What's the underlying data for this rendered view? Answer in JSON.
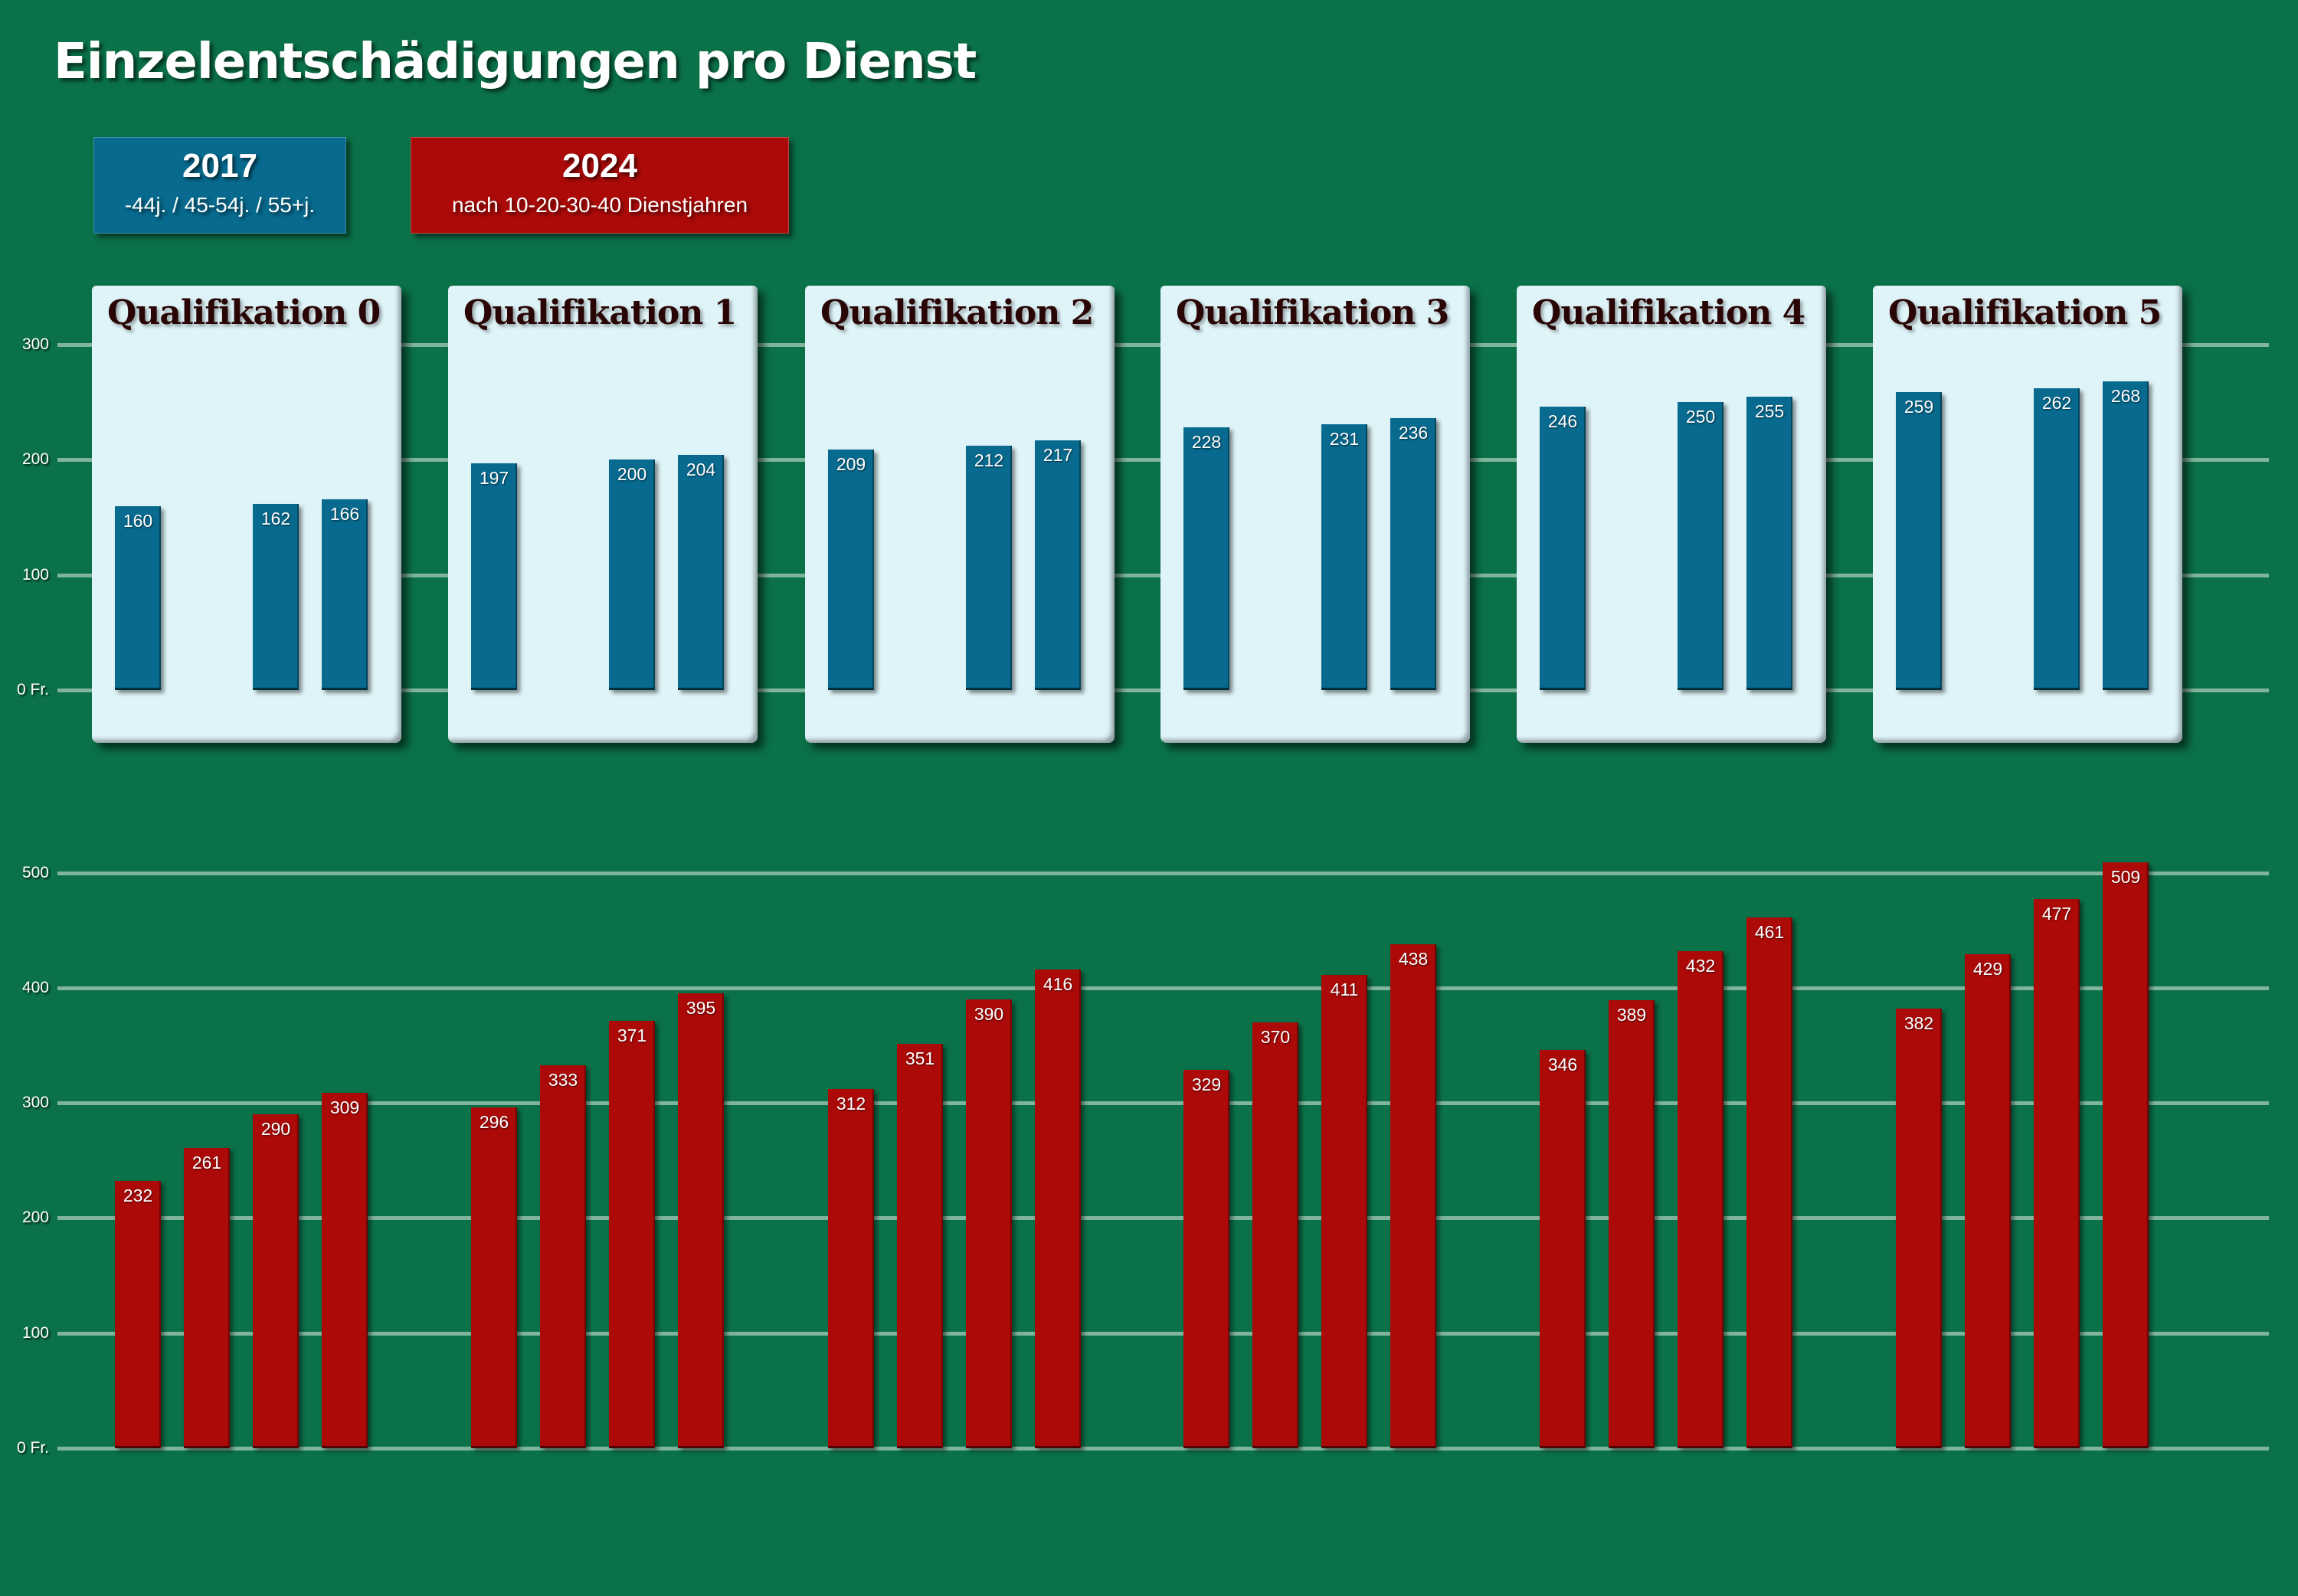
{
  "title": "Einzelentschädigungen pro Dienst",
  "legend": [
    {
      "year": "2017",
      "subtitle": "-44j. / 45-54j. / 55+j.",
      "color": "#076a8e"
    },
    {
      "year": "2024",
      "subtitle": "nach 10-20-30-40 Dienstjahren",
      "color": "#ab0a08"
    }
  ],
  "colors": {
    "background": "#0a7148",
    "panel": "#dff4f8",
    "bar_2017": "#076a8e",
    "bar_2024": "#ab0a08",
    "grid": "#7fb59c"
  },
  "chart_data": [
    {
      "type": "bar",
      "title": "2017",
      "ylabel": "Fr.",
      "ylim": [
        0,
        300
      ],
      "yticks": [
        "0 Fr.",
        "100",
        "200",
        "300"
      ],
      "categories": [
        "Qualifikation 0",
        "Qualifikation 1",
        "Qualifikation 2",
        "Qualifikation 3",
        "Qualifikation 4",
        "Qualifikation 5"
      ],
      "slots": [
        "-44j.",
        "",
        "45-54j.",
        "55+j."
      ],
      "series": [
        {
          "name": "-44j.",
          "values": [
            160,
            197,
            209,
            228,
            246,
            259
          ]
        },
        {
          "name": "45-54j.",
          "values": [
            162,
            200,
            212,
            231,
            250,
            262
          ]
        },
        {
          "name": "55+j.",
          "values": [
            166,
            204,
            217,
            236,
            255,
            268
          ]
        }
      ],
      "grid": true
    },
    {
      "type": "bar",
      "title": "2024",
      "ylabel": "Fr.",
      "ylim": [
        0,
        500
      ],
      "yticks": [
        "0 Fr.",
        "100",
        "200",
        "300",
        "400",
        "500"
      ],
      "categories": [
        "Qualifikation 0",
        "Qualifikation 1",
        "Qualifikation 2",
        "Qualifikation 3",
        "Qualifikation 4",
        "Qualifikation 5"
      ],
      "series": [
        {
          "name": "10 Dienstjahre",
          "values": [
            232,
            296,
            312,
            329,
            346,
            382
          ]
        },
        {
          "name": "20 Dienstjahre",
          "values": [
            261,
            333,
            351,
            370,
            389,
            429
          ]
        },
        {
          "name": "30 Dienstjahre",
          "values": [
            290,
            371,
            390,
            411,
            432,
            477
          ]
        },
        {
          "name": "40 Dienstjahre",
          "values": [
            309,
            395,
            416,
            438,
            461,
            509
          ]
        }
      ],
      "grid": true
    }
  ]
}
